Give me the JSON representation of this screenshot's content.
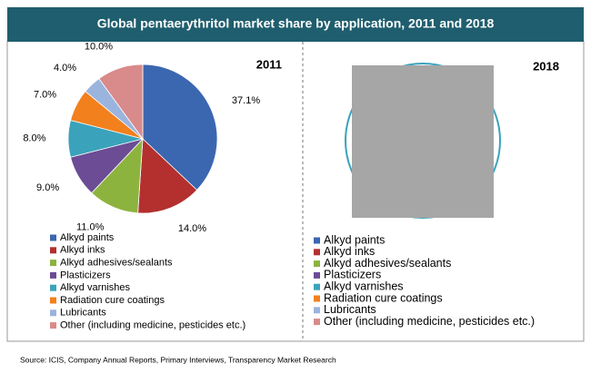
{
  "title": "Global pentaerythritol market share by application, 2011 and 2018",
  "source": "Source:  ICIS, Company Annual Reports, Primary Interviews, Transparency Market Research",
  "chart_data": [
    {
      "type": "pie",
      "title": "2011",
      "categories": [
        "Alkyd paints",
        "Alkyd inks",
        "Alkyd adhesives/sealants",
        "Plasticizers",
        "Alkyd varnishes",
        "Radiation cure coatings",
        "Lubricants",
        "Other (including medicine, pesticides etc.)"
      ],
      "colors": [
        "#3b67b1",
        "#b3302f",
        "#8db33f",
        "#6b4c95",
        "#3aa3bb",
        "#f2801c",
        "#9bb4de",
        "#d98a8a"
      ],
      "values": [
        37.1,
        14,
        11,
        9,
        8,
        7,
        4,
        10
      ],
      "value_labels": [
        "37.1%",
        "14.0%",
        "11.0%",
        "9.0%",
        "8.0%",
        "7.0%",
        "4.0%",
        "10.0%"
      ]
    },
    {
      "type": "pie-hidden",
      "title": "2018",
      "categories": [
        "Alkyd paints",
        "Alkyd inks",
        "Alkyd adhesives/sealants",
        "Plasticizers",
        "Alkyd varnishes",
        "Radiation cure coatings",
        "Lubricants",
        "Other (including medicine, pesticides etc.)"
      ],
      "colors": [
        "#3b67b1",
        "#b3302f",
        "#8db33f",
        "#6b4c95",
        "#3aa3bb",
        "#f2801c",
        "#9bb4de",
        "#d98a8a"
      ]
    }
  ]
}
